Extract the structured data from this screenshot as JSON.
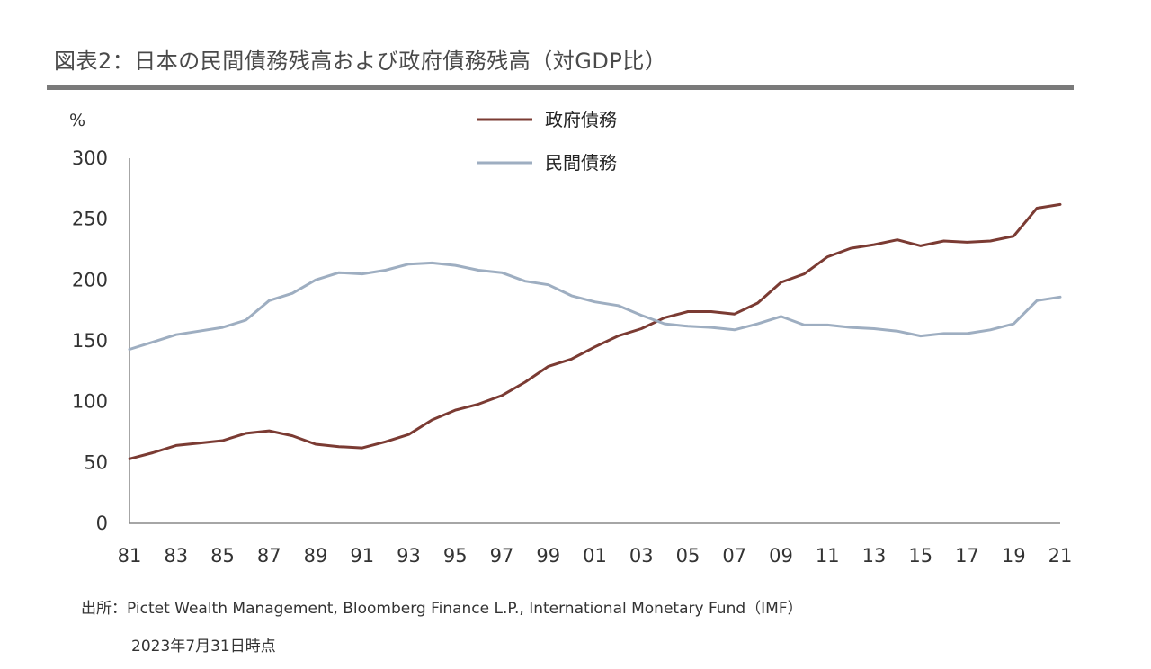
{
  "title": "図表2：日本の民間債務残高および政府債務残高（対GDP比）",
  "source": "出所：Pictet Wealth Management, Bloomberg Finance L.P., International Monetary Fund（IMF）",
  "as_of": "2023年7月31日時点",
  "chart_data": {
    "type": "line",
    "ylabel": "%",
    "xlabel": "",
    "ylim": [
      0,
      300
    ],
    "yticks": [
      0,
      50,
      100,
      150,
      200,
      250,
      300
    ],
    "xlim": [
      1981,
      2021
    ],
    "xtick_years": [
      1981,
      1983,
      1985,
      1987,
      1989,
      1991,
      1993,
      1995,
      1997,
      1999,
      2001,
      2003,
      2005,
      2007,
      2009,
      2011,
      2013,
      2015,
      2017,
      2019,
      2021
    ],
    "xtick_labels": [
      "81",
      "83",
      "85",
      "87",
      "89",
      "91",
      "93",
      "95",
      "97",
      "99",
      "01",
      "03",
      "05",
      "07",
      "09",
      "11",
      "13",
      "15",
      "17",
      "19",
      "21"
    ],
    "grid": false,
    "legend_position": "top-center",
    "x": [
      1981,
      1982,
      1983,
      1984,
      1985,
      1986,
      1987,
      1988,
      1989,
      1990,
      1991,
      1992,
      1993,
      1994,
      1995,
      1996,
      1997,
      1998,
      1999,
      2000,
      2001,
      2002,
      2003,
      2004,
      2005,
      2006,
      2007,
      2008,
      2009,
      2010,
      2011,
      2012,
      2013,
      2014,
      2015,
      2016,
      2017,
      2018,
      2019,
      2020,
      2021
    ],
    "series": [
      {
        "name": "政府債務",
        "color": "#7b3b33",
        "values": [
          53,
          58,
          64,
          66,
          68,
          74,
          76,
          72,
          65,
          63,
          62,
          67,
          73,
          85,
          93,
          98,
          105,
          116,
          129,
          135,
          145,
          154,
          160,
          169,
          174,
          174,
          172,
          181,
          198,
          205,
          219,
          226,
          229,
          233,
          228,
          232,
          231,
          232,
          236,
          259,
          262
        ]
      },
      {
        "name": "民間債務",
        "color": "#9eaec1",
        "values": [
          143,
          149,
          155,
          158,
          161,
          167,
          183,
          189,
          200,
          206,
          205,
          208,
          213,
          214,
          212,
          208,
          206,
          199,
          196,
          187,
          182,
          179,
          171,
          164,
          162,
          161,
          159,
          164,
          170,
          163,
          163,
          161,
          160,
          158,
          154,
          156,
          156,
          159,
          164,
          183,
          186
        ]
      }
    ]
  }
}
